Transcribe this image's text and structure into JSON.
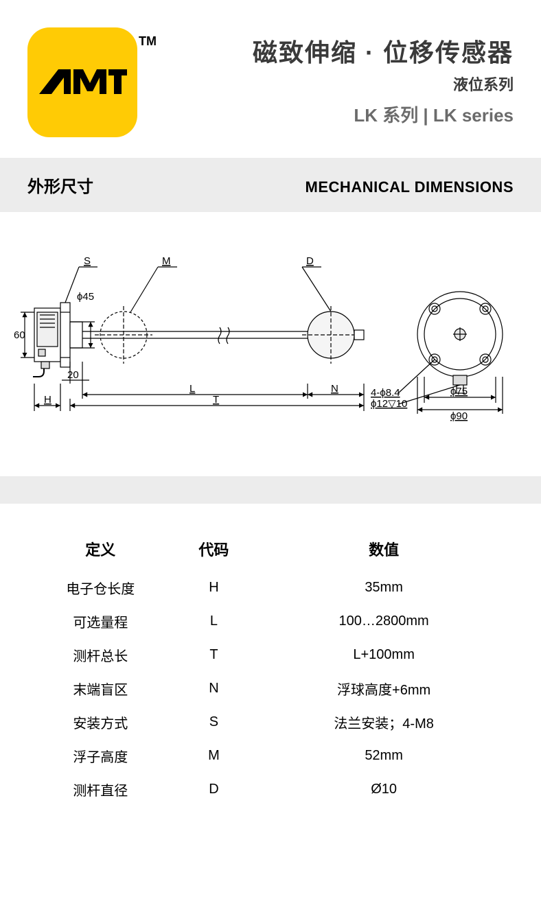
{
  "logo": {
    "text": "AMT",
    "tm": "TM",
    "bg_color": "#ffcb05",
    "fg_color": "#000000"
  },
  "header": {
    "main": "磁致伸缩 · 位移传感器",
    "sub": "液位系列",
    "series": "LK 系列  |  LK series"
  },
  "section": {
    "left": "外形尺寸",
    "right": "MECHANICAL DIMENSIONS"
  },
  "diagram": {
    "labels": {
      "S": "S",
      "M": "M",
      "D": "D",
      "phi45": "ϕ45",
      "dim60": "60",
      "dim20": "20",
      "H": "H",
      "L": "L",
      "N": "N",
      "T": "T",
      "holes": "4-ϕ8.4",
      "depth": "ϕ12▽10",
      "phi75": "ϕ75",
      "phi90": "ϕ90"
    },
    "colors": {
      "stroke": "#000000",
      "bg": "#ffffff"
    }
  },
  "table": {
    "headers": {
      "def": "定义",
      "code": "代码",
      "val": "数值"
    },
    "rows": [
      {
        "def": "电子仓长度",
        "code": "H",
        "val": "35mm"
      },
      {
        "def": "可选量程",
        "code": "L",
        "val": "100…2800mm"
      },
      {
        "def": "测杆总长",
        "code": "T",
        "val": "L+100mm"
      },
      {
        "def": "末端盲区",
        "code": "N",
        "val": "浮球高度+6mm"
      },
      {
        "def": "安装方式",
        "code": "S",
        "val": "法兰安装；4-M8"
      },
      {
        "def": "浮子高度",
        "code": "M",
        "val": "52mm"
      },
      {
        "def": "测杆直径",
        "code": "D",
        "val": "Ø10"
      }
    ]
  }
}
